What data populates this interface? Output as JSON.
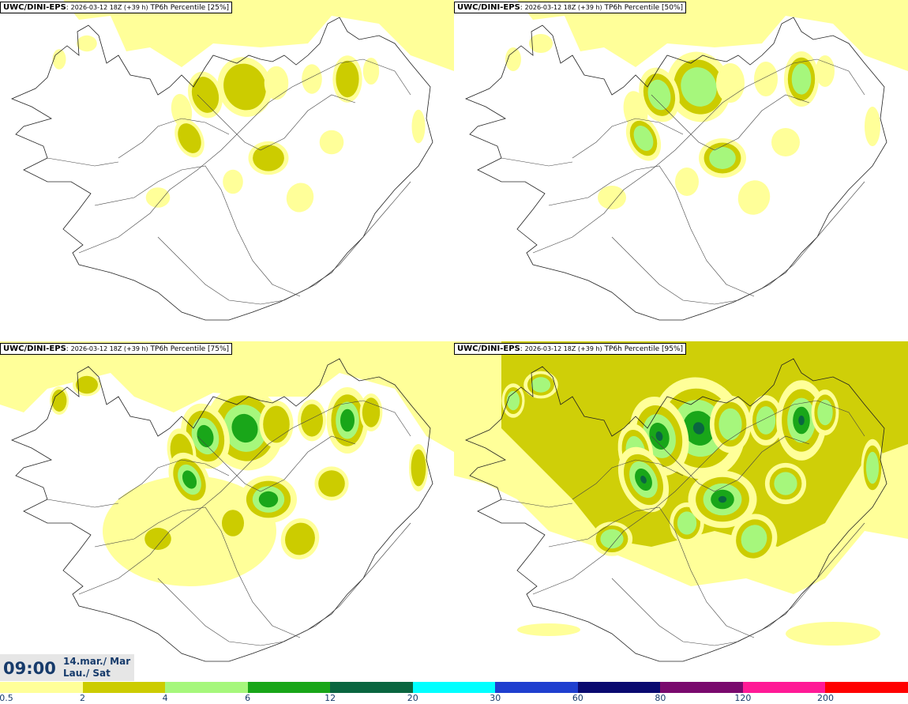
{
  "header": {
    "model": "UWC/DINI-EPS",
    "run": "2026-03-12 18Z (+39 h)",
    "field": "TP6h Percentile"
  },
  "panels": [
    {
      "label": "TP6h Percentile [25%]",
      "percentile": "25%"
    },
    {
      "label": "TP6h Percentile [50%]",
      "percentile": "50%"
    },
    {
      "label": "TP6h Percentile [75%]",
      "percentile": "75%"
    },
    {
      "label": "TP6h Percentile [95%]",
      "percentile": "95%"
    }
  ],
  "valid_time": {
    "time": "09:00",
    "date_line1": "14.mar./ Mar",
    "date_line2": "Lau./ Sat"
  },
  "legend": {
    "colors": [
      "#ffff99",
      "#cccc00",
      "#a6f77c",
      "#19a619",
      "#0a6640",
      "#00ffff",
      "#1f3fcf",
      "#0a0a70",
      "#7a0a6e",
      "#ff1a96",
      "#ff0000"
    ],
    "ticks": [
      "0.5",
      "2",
      "4",
      "6",
      "12",
      "20",
      "30",
      "60",
      "80",
      "120",
      "200"
    ]
  }
}
